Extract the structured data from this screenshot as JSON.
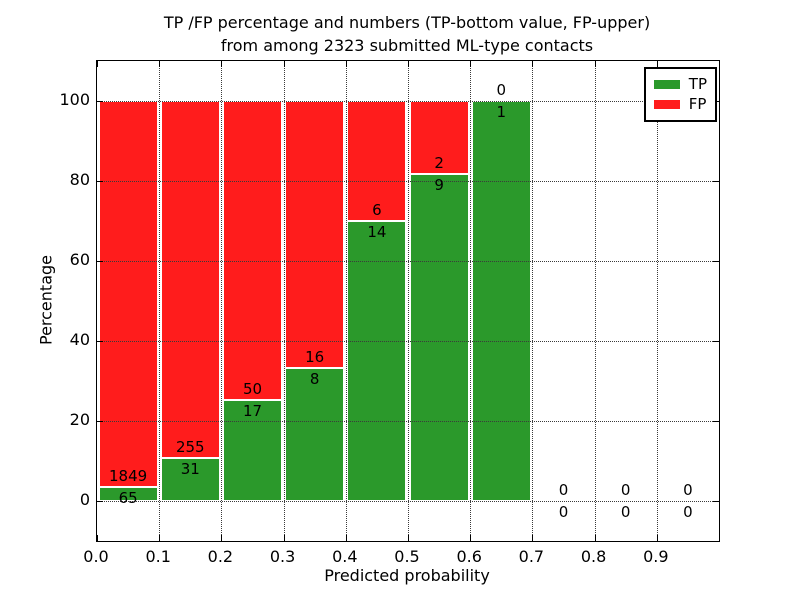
{
  "chart_data": {
    "type": "bar",
    "stacked": true,
    "title_line1": "TP /FP percentage and numbers (TP-bottom value, FP-upper)",
    "title_line2": "from among 2323 submitted ML-type contacts",
    "xlabel": "Predicted probability",
    "ylabel": "Percentage",
    "xlim": [
      0.0,
      1.0
    ],
    "ylim": [
      -10,
      110
    ],
    "grid": "dotted",
    "bar_value_unit": "percent of bin total (TP+FP stack to 100%)",
    "xticks": [
      {
        "value": 0.0,
        "label": "0.0"
      },
      {
        "value": 0.1,
        "label": "0.1"
      },
      {
        "value": 0.2,
        "label": "0.2"
      },
      {
        "value": 0.3,
        "label": "0.3"
      },
      {
        "value": 0.4,
        "label": "0.4"
      },
      {
        "value": 0.5,
        "label": "0.5"
      },
      {
        "value": 0.6,
        "label": "0.6"
      },
      {
        "value": 0.7,
        "label": "0.7"
      },
      {
        "value": 0.8,
        "label": "0.8"
      },
      {
        "value": 0.9,
        "label": "0.9"
      }
    ],
    "yticks": [
      0,
      20,
      40,
      60,
      80,
      100
    ],
    "categories": [
      "0.0-0.1",
      "0.1-0.2",
      "0.2-0.3",
      "0.3-0.4",
      "0.4-0.5",
      "0.5-0.6",
      "0.6-0.7",
      "0.7-0.8",
      "0.8-0.9",
      "0.9-1.0"
    ],
    "bins": [
      {
        "range": [
          0.0,
          0.1
        ],
        "tp": 65,
        "fp": 1849
      },
      {
        "range": [
          0.1,
          0.2
        ],
        "tp": 31,
        "fp": 255
      },
      {
        "range": [
          0.2,
          0.3
        ],
        "tp": 17,
        "fp": 50
      },
      {
        "range": [
          0.3,
          0.4
        ],
        "tp": 8,
        "fp": 16
      },
      {
        "range": [
          0.4,
          0.5
        ],
        "tp": 14,
        "fp": 6
      },
      {
        "range": [
          0.5,
          0.6
        ],
        "tp": 9,
        "fp": 2
      },
      {
        "range": [
          0.6,
          0.7
        ],
        "tp": 1,
        "fp": 0
      },
      {
        "range": [
          0.7,
          0.8
        ],
        "tp": 0,
        "fp": 0
      },
      {
        "range": [
          0.8,
          0.9
        ],
        "tp": 0,
        "fp": 0
      },
      {
        "range": [
          0.9,
          1.0
        ],
        "tp": 0,
        "fp": 0
      }
    ],
    "series": [
      {
        "name": "TP",
        "counts": [
          65,
          31,
          17,
          8,
          14,
          9,
          1,
          0,
          0,
          0
        ]
      },
      {
        "name": "FP",
        "counts": [
          1849,
          255,
          50,
          16,
          6,
          2,
          0,
          0,
          0,
          0
        ]
      }
    ],
    "legend": {
      "position": "upper right",
      "entries": [
        {
          "label": "TP",
          "color": "#2B992B"
        },
        {
          "label": "FP",
          "color": "#FF1C1C"
        }
      ]
    },
    "colors": {
      "tp": "#2B992B",
      "fp": "#FF1C1C",
      "grid": "#3a3a3a",
      "frame": "#000000",
      "background": "#FFFFFF"
    }
  }
}
